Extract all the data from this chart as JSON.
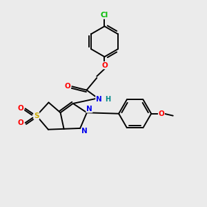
{
  "bg_color": "#ebebeb",
  "bond_color": "#000000",
  "bond_width": 1.4,
  "atom_colors": {
    "Cl": "#00bb00",
    "O": "#ff0000",
    "N": "#0000ee",
    "S": "#ccaa00",
    "C": "#000000",
    "H": "#008888"
  }
}
